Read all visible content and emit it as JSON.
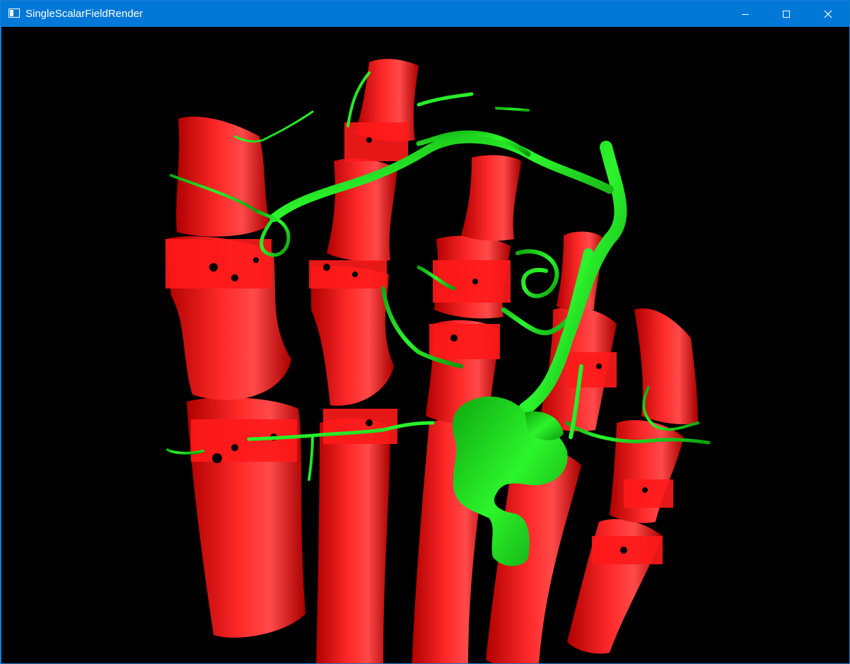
{
  "window": {
    "title": "SingleScalarFieldRender",
    "icon": "app-window-icon",
    "controls": {
      "minimize": "minimize-icon",
      "maximize": "maximize-icon",
      "close": "close-icon"
    }
  },
  "render": {
    "background_color": "#000000",
    "bone_color": "#ff1a1a",
    "vessel_color": "#1fe01f"
  }
}
